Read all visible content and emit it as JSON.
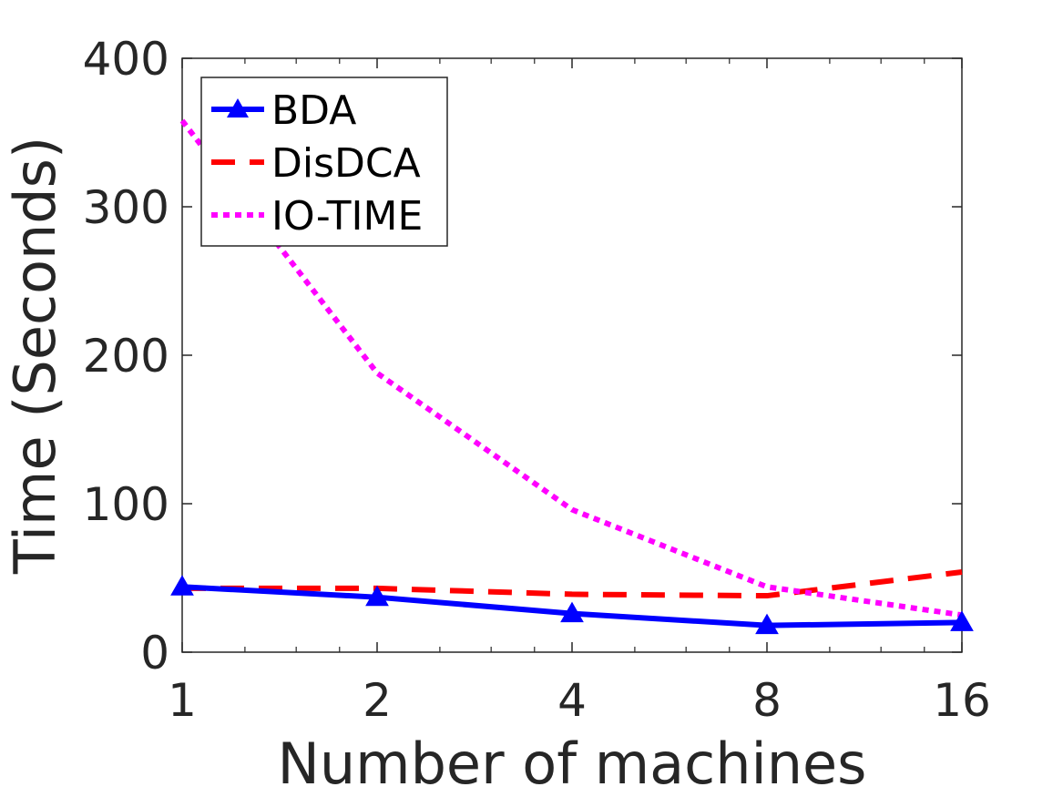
{
  "chart_data": {
    "type": "line",
    "title": "",
    "xlabel": "Number of machines",
    "ylabel": "Time (Seconds)",
    "x_scale": "log2",
    "x": [
      1,
      2,
      4,
      8,
      16
    ],
    "x_tick_labels": [
      "1",
      "2",
      "4",
      "8",
      "16"
    ],
    "ylim": [
      0,
      400
    ],
    "y_ticks": [
      0,
      100,
      200,
      300,
      400
    ],
    "y_tick_labels": [
      "0",
      "100",
      "200",
      "300",
      "400"
    ],
    "grid": false,
    "legend_position": "top-left",
    "series": [
      {
        "name": "BDA",
        "values": [
          44,
          37,
          26,
          18,
          20
        ],
        "color": "#0000ff",
        "style": "solid",
        "marker": "triangle"
      },
      {
        "name": "DisDCA",
        "values": [
          43,
          43,
          39,
          38,
          54
        ],
        "color": "#ff0000",
        "style": "dashed",
        "marker": "none"
      },
      {
        "name": "IO-TIME",
        "values": [
          358,
          188,
          96,
          44,
          25
        ],
        "color": "#ff00ff",
        "style": "dotted",
        "marker": "none"
      }
    ]
  }
}
